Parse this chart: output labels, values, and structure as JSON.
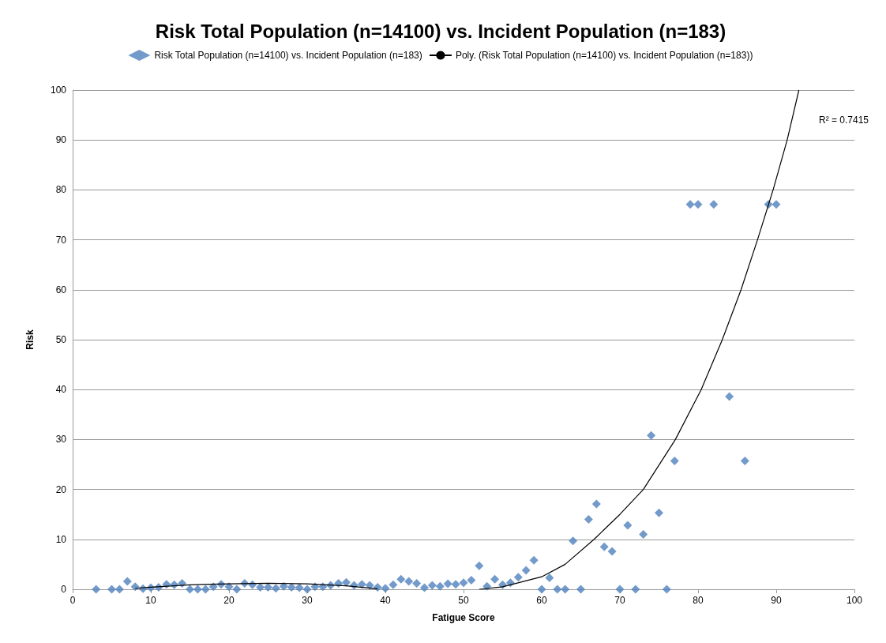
{
  "chart_data": {
    "type": "scatter",
    "title": "Risk Total Population (n=14100) vs. Incident Population (n=183)",
    "xlabel": "Fatigue Score",
    "ylabel": "Risk",
    "xlim": [
      0,
      100
    ],
    "ylim": [
      0,
      100
    ],
    "xticks": [
      0,
      10,
      20,
      30,
      40,
      50,
      60,
      70,
      80,
      90,
      100
    ],
    "yticks": [
      0,
      10,
      20,
      30,
      40,
      50,
      60,
      70,
      80,
      90,
      100
    ],
    "grid": "y",
    "legend": "top",
    "annotations": [
      "R² = 0.7415"
    ],
    "series": [
      {
        "name": "Risk Total Population (n=14100) vs. Incident Population (n=183)",
        "color": "#4f81bd",
        "marker": "diamond",
        "x": [
          3,
          5,
          6,
          7,
          8,
          9,
          10,
          11,
          12,
          13,
          14,
          15,
          16,
          17,
          18,
          19,
          20,
          21,
          22,
          23,
          24,
          25,
          26,
          27,
          28,
          29,
          30,
          31,
          32,
          33,
          34,
          35,
          36,
          37,
          38,
          39,
          40,
          41,
          42,
          43,
          44,
          45,
          46,
          47,
          48,
          49,
          50,
          51,
          52,
          53,
          54,
          55,
          56,
          57,
          58,
          59,
          60,
          61,
          62,
          63,
          64,
          65,
          66,
          67,
          68,
          69,
          70,
          71,
          72,
          73,
          74,
          75,
          76,
          77,
          79,
          80,
          82,
          84,
          86,
          89,
          90
        ],
        "values": [
          0,
          0,
          0,
          1.6,
          0.5,
          0.1,
          0.3,
          0.4,
          1.0,
          0.9,
          1.2,
          0,
          0,
          0,
          0.5,
          1.0,
          0.5,
          0,
          1.2,
          0.9,
          0.4,
          0.4,
          0.2,
          0.6,
          0.4,
          0.3,
          0,
          0.5,
          0.5,
          0.8,
          1.2,
          1.4,
          0.8,
          1.0,
          0.8,
          0.4,
          0.2,
          0.9,
          2.0,
          1.6,
          1.2,
          0.3,
          0.8,
          0.6,
          1.1,
          1.0,
          1.3,
          1.8,
          4.7,
          0.6,
          2.0,
          0.9,
          1.3,
          2.4,
          3.8,
          5.8,
          0,
          2.3,
          0,
          0,
          9.7,
          0,
          14,
          17.1,
          8.5,
          7.6,
          0,
          12.8,
          0,
          11,
          30.8,
          15.3,
          0,
          25.7,
          77.1,
          77.1,
          77.1,
          38.6,
          25.7,
          77.1,
          77.1
        ]
      },
      {
        "name": "Poly. (Risk Total Population (n=14100) vs. Incident Population (n=183))",
        "type": "line",
        "color": "#000000",
        "marker": "none",
        "x": [
          8,
          10,
          15,
          20,
          25,
          30,
          35,
          39,
          45,
          52,
          55,
          60,
          63,
          66.7,
          70,
          73,
          77.1,
          80.4,
          83.1,
          85.5,
          87.6,
          89.6,
          91.4,
          92.9
        ],
        "values": [
          0.2,
          0.4,
          0.9,
          1.1,
          1.2,
          1.1,
          0.7,
          0.1,
          null,
          0,
          0.5,
          2.5,
          5,
          10,
          15,
          20,
          30,
          40,
          50,
          60,
          70,
          80,
          90,
          100
        ]
      }
    ]
  }
}
